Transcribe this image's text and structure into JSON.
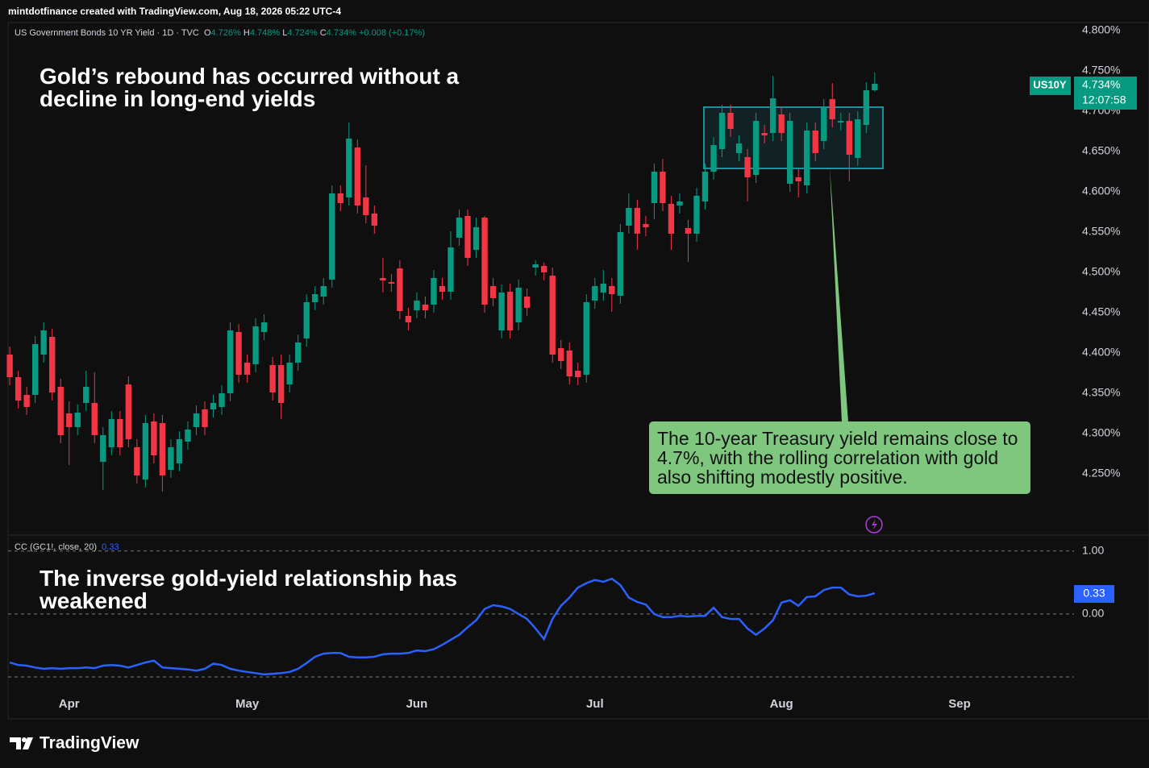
{
  "header": "mintdotfinance created with TradingView.com, Aug 18, 2026 05:22 UTC-4",
  "footer_logo": "TradingView",
  "chart_data": [
    {
      "type": "candlestick",
      "symbol_line": "US Government Bonds 10 YR Yield · 1D · TVC",
      "legend_keys": [
        "O",
        "H",
        "L",
        "C"
      ],
      "legend_values": [
        "4.726%",
        "4.748%",
        "4.724%",
        "4.734%"
      ],
      "change_label": "+0.008 (+0.17%)",
      "title": "Gold’s rebound has occurred without a decline in long-end yields",
      "annotation": "The 10-year Treasury yield remains close to 4.7%, with the rolling correlation with gold also shifting modestly positive.",
      "last_symbol": "US10Y",
      "last_price_label": "4.734%",
      "countdown": "12:07:58",
      "up_color": "#089981",
      "down_color": "#f23645",
      "open": [
        4.398,
        4.37,
        4.348,
        4.348,
        4.398,
        4.42,
        4.358,
        4.325,
        4.308,
        4.338,
        4.338,
        4.265,
        4.283,
        4.318,
        4.361,
        4.283,
        4.243,
        4.315,
        4.313,
        4.255,
        4.263,
        4.29,
        4.308,
        4.33,
        4.33,
        4.333,
        4.35,
        4.426,
        4.388,
        4.386,
        4.426,
        4.385,
        4.385,
        4.361,
        4.388,
        4.418,
        4.463,
        4.47,
        4.491,
        4.598,
        4.593,
        4.655,
        4.593,
        4.573,
        4.493,
        4.488,
        4.505,
        4.446,
        4.453,
        4.46,
        4.46,
        4.483,
        4.476,
        4.543,
        4.57,
        4.528,
        4.568,
        4.483,
        4.428,
        4.476,
        4.438,
        4.47,
        4.506,
        4.508,
        4.496,
        4.406,
        4.403,
        4.378,
        4.373,
        4.465,
        4.475,
        4.483,
        4.471,
        4.558,
        4.58,
        4.56,
        4.586,
        4.625,
        4.585,
        4.583,
        4.555,
        4.548,
        4.588,
        4.625,
        4.653,
        4.698,
        4.648,
        4.643,
        4.621,
        4.673,
        4.673,
        4.696,
        4.61,
        4.618,
        4.608,
        4.676,
        4.663,
        4.715,
        4.686,
        4.688,
        4.642,
        4.683,
        4.726
      ],
      "high": [
        4.408,
        4.378,
        4.358,
        4.421,
        4.438,
        4.43,
        4.368,
        4.34,
        4.336,
        4.378,
        4.376,
        4.308,
        4.328,
        4.328,
        4.371,
        4.293,
        4.323,
        4.325,
        4.323,
        4.293,
        4.303,
        4.315,
        4.335,
        4.34,
        4.348,
        4.36,
        4.438,
        4.436,
        4.398,
        4.443,
        4.448,
        4.395,
        4.398,
        4.398,
        4.423,
        4.473,
        4.483,
        4.493,
        4.608,
        4.608,
        4.686,
        4.665,
        4.633,
        4.583,
        4.518,
        4.498,
        4.515,
        4.456,
        4.475,
        4.47,
        4.503,
        4.493,
        4.551,
        4.578,
        4.578,
        4.568,
        4.57,
        4.493,
        4.485,
        4.486,
        4.491,
        4.48,
        4.515,
        4.512,
        4.506,
        4.416,
        4.413,
        4.388,
        4.473,
        4.493,
        4.503,
        4.493,
        4.56,
        4.598,
        4.59,
        4.57,
        4.635,
        4.641,
        4.595,
        4.598,
        4.565,
        4.605,
        4.635,
        4.668,
        4.708,
        4.708,
        4.67,
        4.653,
        4.698,
        4.683,
        4.744,
        4.706,
        4.698,
        4.628,
        4.686,
        4.686,
        4.715,
        4.735,
        4.698,
        4.698,
        4.7,
        4.736,
        4.748
      ],
      "low": [
        4.36,
        4.331,
        4.323,
        4.338,
        4.388,
        4.341,
        4.288,
        4.261,
        4.298,
        4.328,
        4.288,
        4.23,
        4.273,
        4.273,
        4.283,
        4.238,
        4.233,
        4.263,
        4.228,
        4.245,
        4.253,
        4.28,
        4.298,
        4.298,
        4.32,
        4.323,
        4.34,
        4.363,
        4.363,
        4.376,
        4.416,
        4.341,
        4.318,
        4.351,
        4.378,
        4.408,
        4.453,
        4.46,
        4.481,
        4.576,
        4.583,
        4.573,
        4.561,
        4.548,
        4.475,
        4.476,
        4.442,
        4.428,
        4.443,
        4.443,
        4.45,
        4.466,
        4.466,
        4.533,
        4.508,
        4.518,
        4.45,
        4.458,
        4.418,
        4.418,
        4.428,
        4.446,
        4.496,
        4.49,
        4.388,
        4.38,
        4.361,
        4.36,
        4.363,
        4.455,
        4.465,
        4.451,
        4.461,
        4.548,
        4.528,
        4.545,
        4.566,
        4.576,
        4.528,
        4.573,
        4.513,
        4.538,
        4.578,
        4.615,
        4.643,
        4.668,
        4.638,
        4.588,
        4.611,
        4.66,
        4.663,
        4.663,
        4.6,
        4.593,
        4.598,
        4.638,
        4.653,
        4.68,
        4.676,
        4.613,
        4.632,
        4.673,
        4.724
      ],
      "close": [
        4.37,
        4.341,
        4.333,
        4.411,
        4.428,
        4.351,
        4.298,
        4.308,
        4.326,
        4.358,
        4.298,
        4.298,
        4.318,
        4.283,
        4.293,
        4.248,
        4.313,
        4.273,
        4.248,
        4.283,
        4.293,
        4.305,
        4.325,
        4.308,
        4.338,
        4.35,
        4.428,
        4.373,
        4.373,
        4.433,
        4.438,
        4.351,
        4.338,
        4.388,
        4.413,
        4.463,
        4.473,
        4.483,
        4.598,
        4.586,
        4.666,
        4.583,
        4.571,
        4.558,
        4.49,
        4.486,
        4.452,
        4.438,
        4.465,
        4.453,
        4.493,
        4.476,
        4.531,
        4.568,
        4.518,
        4.556,
        4.46,
        4.468,
        4.475,
        4.428,
        4.481,
        4.456,
        4.51,
        4.5,
        4.398,
        4.39,
        4.371,
        4.37,
        4.463,
        4.483,
        4.486,
        4.473,
        4.55,
        4.58,
        4.548,
        4.556,
        4.625,
        4.586,
        4.548,
        4.588,
        4.548,
        4.595,
        4.625,
        4.658,
        4.698,
        4.678,
        4.66,
        4.618,
        4.688,
        4.67,
        4.716,
        4.673,
        4.688,
        4.613,
        4.676,
        4.648,
        4.705,
        4.69,
        4.688,
        4.646,
        4.69,
        4.726,
        4.734
      ],
      "ylim": [
        4.176,
        4.808
      ],
      "yticks": [
        {
          "value": 4.8,
          "label": "4.800%"
        },
        {
          "value": 4.75,
          "label": "4.750%"
        },
        {
          "value": 4.7,
          "label": "4.700%"
        },
        {
          "value": 4.65,
          "label": "4.650%"
        },
        {
          "value": 4.6,
          "label": "4.600%"
        },
        {
          "value": 4.55,
          "label": "4.550%"
        },
        {
          "value": 4.5,
          "label": "4.500%"
        },
        {
          "value": 4.45,
          "label": "4.450%"
        },
        {
          "value": 4.4,
          "label": "4.400%"
        },
        {
          "value": 4.35,
          "label": "4.350%"
        },
        {
          "value": 4.3,
          "label": "4.300%"
        },
        {
          "value": 4.25,
          "label": "4.250%"
        }
      ],
      "grid": false
    },
    {
      "type": "line",
      "name": "CC (GC1!, close, 20)",
      "title": "The inverse gold-yield relationship has weakened",
      "color": "#2962ff",
      "values": [
        -0.77,
        -0.81,
        -0.82,
        -0.85,
        -0.87,
        -0.86,
        -0.87,
        -0.86,
        -0.86,
        -0.85,
        -0.86,
        -0.82,
        -0.81,
        -0.82,
        -0.85,
        -0.81,
        -0.77,
        -0.74,
        -0.85,
        -0.86,
        -0.87,
        -0.88,
        -0.9,
        -0.87,
        -0.79,
        -0.81,
        -0.87,
        -0.9,
        -0.92,
        -0.94,
        -0.96,
        -0.95,
        -0.94,
        -0.92,
        -0.87,
        -0.78,
        -0.68,
        -0.63,
        -0.62,
        -0.62,
        -0.68,
        -0.69,
        -0.69,
        -0.68,
        -0.64,
        -0.63,
        -0.63,
        -0.62,
        -0.58,
        -0.59,
        -0.56,
        -0.49,
        -0.41,
        -0.33,
        -0.21,
        -0.1,
        0.08,
        0.14,
        0.12,
        0.08,
        0.0,
        -0.08,
        -0.23,
        -0.4,
        -0.08,
        0.13,
        0.26,
        0.42,
        0.49,
        0.54,
        0.51,
        0.56,
        0.46,
        0.26,
        0.19,
        0.15,
        0.0,
        -0.05,
        -0.05,
        -0.03,
        -0.04,
        -0.03,
        -0.03,
        0.1,
        -0.05,
        -0.08,
        -0.08,
        -0.23,
        -0.33,
        -0.23,
        -0.1,
        0.18,
        0.22,
        0.13,
        0.27,
        0.28,
        0.38,
        0.42,
        0.42,
        0.31,
        0.28,
        0.29,
        0.33
      ],
      "ylim": [
        -1.23,
        1.24
      ],
      "yticks": [
        {
          "value": 1,
          "label": "1.00"
        },
        {
          "value": 0,
          "label": "0.00"
        }
      ],
      "levels": [
        1,
        0,
        -1
      ],
      "xlim": [
        -0.2,
        125.5
      ],
      "xticks": [
        {
          "value": 7,
          "label": "Apr"
        },
        {
          "value": 28,
          "label": "May"
        },
        {
          "value": 48,
          "label": "Jun"
        },
        {
          "value": 69,
          "label": "Jul"
        },
        {
          "value": 91,
          "label": "Aug"
        },
        {
          "value": 112,
          "label": "Sep"
        }
      ]
    }
  ]
}
